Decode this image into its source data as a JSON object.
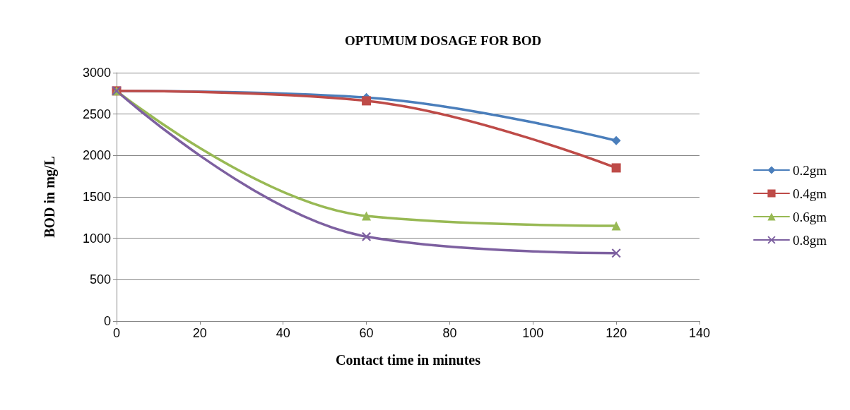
{
  "chart_data": {
    "type": "line",
    "title": "OPTUMUM DOSAGE FOR BOD",
    "xlabel": "Contact time in minutes",
    "ylabel": "BOD in mg/L",
    "x": [
      0,
      60,
      120
    ],
    "series": [
      {
        "name": "0.2gm",
        "color": "#4a7ebb",
        "marker": "diamond",
        "values": [
          2780,
          2700,
          2180
        ]
      },
      {
        "name": "0.4gm",
        "color": "#be4b48",
        "marker": "square",
        "values": [
          2780,
          2660,
          1850
        ]
      },
      {
        "name": "0.6gm",
        "color": "#98b954",
        "marker": "triangle",
        "values": [
          2780,
          1270,
          1150
        ]
      },
      {
        "name": "0.8gm",
        "color": "#7d60a0",
        "marker": "cross",
        "values": [
          2780,
          1020,
          820
        ]
      }
    ],
    "xlim": [
      0,
      140
    ],
    "xticks": [
      0,
      20,
      40,
      60,
      80,
      100,
      120,
      140
    ],
    "ylim": [
      0,
      3000
    ],
    "yticks": [
      0,
      500,
      1000,
      1500,
      2000,
      2500,
      3000
    ],
    "grid": "y",
    "legend": "right",
    "line_style": "solid"
  }
}
